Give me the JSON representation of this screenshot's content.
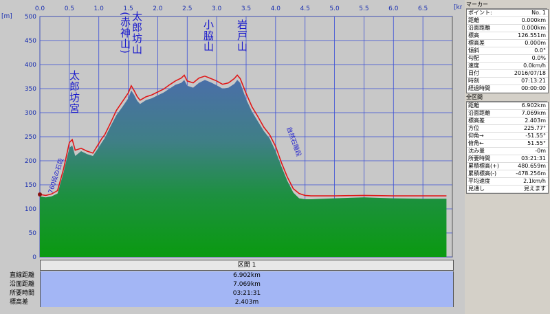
{
  "chart_data": {
    "type": "area",
    "x_unit": "[km]",
    "y_unit": "[m]",
    "x_ticks": [
      "0.0",
      "0.5",
      "1.0",
      "1.5",
      "2.0",
      "2.5",
      "3.0",
      "3.5",
      "4.0",
      "4.5",
      "5.0",
      "5.5",
      "6.0",
      "6.5"
    ],
    "y_ticks": [
      "0",
      "50",
      "100",
      "150",
      "200",
      "250",
      "300",
      "350",
      "400",
      "450",
      "500"
    ],
    "xlim": [
      0,
      7.0
    ],
    "ylim": [
      0,
      500
    ],
    "series": [
      {
        "x": [
          0,
          0.1,
          0.2,
          0.3,
          0.4,
          0.5,
          0.55,
          0.6,
          0.7,
          0.8,
          0.9,
          1.0,
          1.05,
          1.1,
          1.2,
          1.3,
          1.4,
          1.5,
          1.55,
          1.6,
          1.65,
          1.7,
          1.8,
          1.9,
          2.0,
          2.1,
          2.2,
          2.3,
          2.4,
          2.45,
          2.5,
          2.6,
          2.7,
          2.8,
          2.9,
          3.0,
          3.1,
          3.2,
          3.3,
          3.35,
          3.4,
          3.5,
          3.6,
          3.7,
          3.8,
          3.9,
          4.0,
          4.1,
          4.2,
          4.3,
          4.4,
          4.5,
          4.6,
          5.0,
          5.5,
          6.0,
          6.5,
          6.9
        ],
        "elevation": [
          126,
          124,
          126,
          132,
          175,
          227,
          232,
          210,
          220,
          214,
          210,
          228,
          238,
          247,
          272,
          295,
          312,
          330,
          346,
          337,
          325,
          318,
          326,
          330,
          336,
          342,
          350,
          358,
          362,
          368,
          356,
          352,
          362,
          368,
          363,
          357,
          350,
          352,
          360,
          368,
          362,
          328,
          302,
          282,
          262,
          246,
          220,
          188,
          158,
          134,
          122,
          120,
          120,
          122,
          124,
          122,
          121,
          121
        ],
        "track": [
          130,
          128,
          131,
          138,
          182,
          238,
          244,
          222,
          226,
          220,
          216,
          236,
          246,
          254,
          279,
          305,
          323,
          341,
          356,
          346,
          334,
          326,
          333,
          337,
          343,
          349,
          358,
          366,
          372,
          378,
          366,
          362,
          372,
          376,
          371,
          366,
          359,
          362,
          371,
          378,
          371,
          340,
          312,
          292,
          270,
          254,
          230,
          196,
          166,
          142,
          132,
          128,
          127,
          127,
          128,
          127,
          127,
          127
        ]
      }
    ],
    "annotations": [
      {
        "text": "太郎坊宮",
        "x": 0.5
      },
      {
        "text": "太郎坊山",
        "x": 1.6
      },
      {
        "text": "(赤神山)",
        "x": 1.45
      },
      {
        "text": "小脇山",
        "x": 2.8
      },
      {
        "text": "岩戸山",
        "x": 3.35
      },
      {
        "text": "760段の石段",
        "x": 0.18
      },
      {
        "text": "自然石階段",
        "x": 4.2
      }
    ]
  },
  "summary": {
    "header": "区間 1",
    "rows": [
      {
        "label": "直線距離",
        "value": "6.902km"
      },
      {
        "label": "沿面距離",
        "value": "7.069km"
      },
      {
        "label": "所要時間",
        "value": "03:21:31"
      },
      {
        "label": "標高差",
        "value": "2.403m"
      }
    ]
  },
  "marker": {
    "title": "マーカー",
    "rows": [
      {
        "k": "ポイント:",
        "v": "No. 1"
      },
      {
        "k": "距離",
        "v": "0.000km"
      },
      {
        "k": "沿面距離",
        "v": "0.000km"
      },
      {
        "k": "標高",
        "v": "126.551m"
      },
      {
        "k": "標高差",
        "v": "0.000m"
      },
      {
        "k": "傾斜",
        "v": "0.0°"
      },
      {
        "k": "勾配",
        "v": "0.0%"
      },
      {
        "k": "速度",
        "v": "0.0km/h"
      },
      {
        "k": "日付",
        "v": "2016/07/18"
      },
      {
        "k": "時刻",
        "v": "07:13:21"
      },
      {
        "k": "経過時間",
        "v": "00:00:00"
      }
    ]
  },
  "section": {
    "title": "全区間",
    "rows": [
      {
        "k": "距離",
        "v": "6.902km"
      },
      {
        "k": "沿面距離",
        "v": "7.069km"
      },
      {
        "k": "標高差",
        "v": "2.403m"
      },
      {
        "k": "方位",
        "v": "225.77°"
      },
      {
        "k": "仰角→",
        "v": "-51.55°"
      },
      {
        "k": "俯角←",
        "v": "51.55°"
      },
      {
        "k": "沈み量",
        "v": "-0m"
      },
      {
        "k": "所要時間",
        "v": "03:21:31"
      },
      {
        "k": "累積標高(+)",
        "v": "480.659m"
      },
      {
        "k": "累積標高(-)",
        "v": "-478.256m"
      },
      {
        "k": "平均速度",
        "v": "2.1km/h"
      },
      {
        "k": "見通し",
        "v": "見えます"
      }
    ]
  },
  "colors": {
    "plot_bg": "#c8c8c8",
    "grid": "#3a4fd6",
    "track_line": "#e01818",
    "fill_top": "#4a74a8",
    "fill_bottom": "#0a9a10",
    "annotation": "#1a1acc"
  }
}
